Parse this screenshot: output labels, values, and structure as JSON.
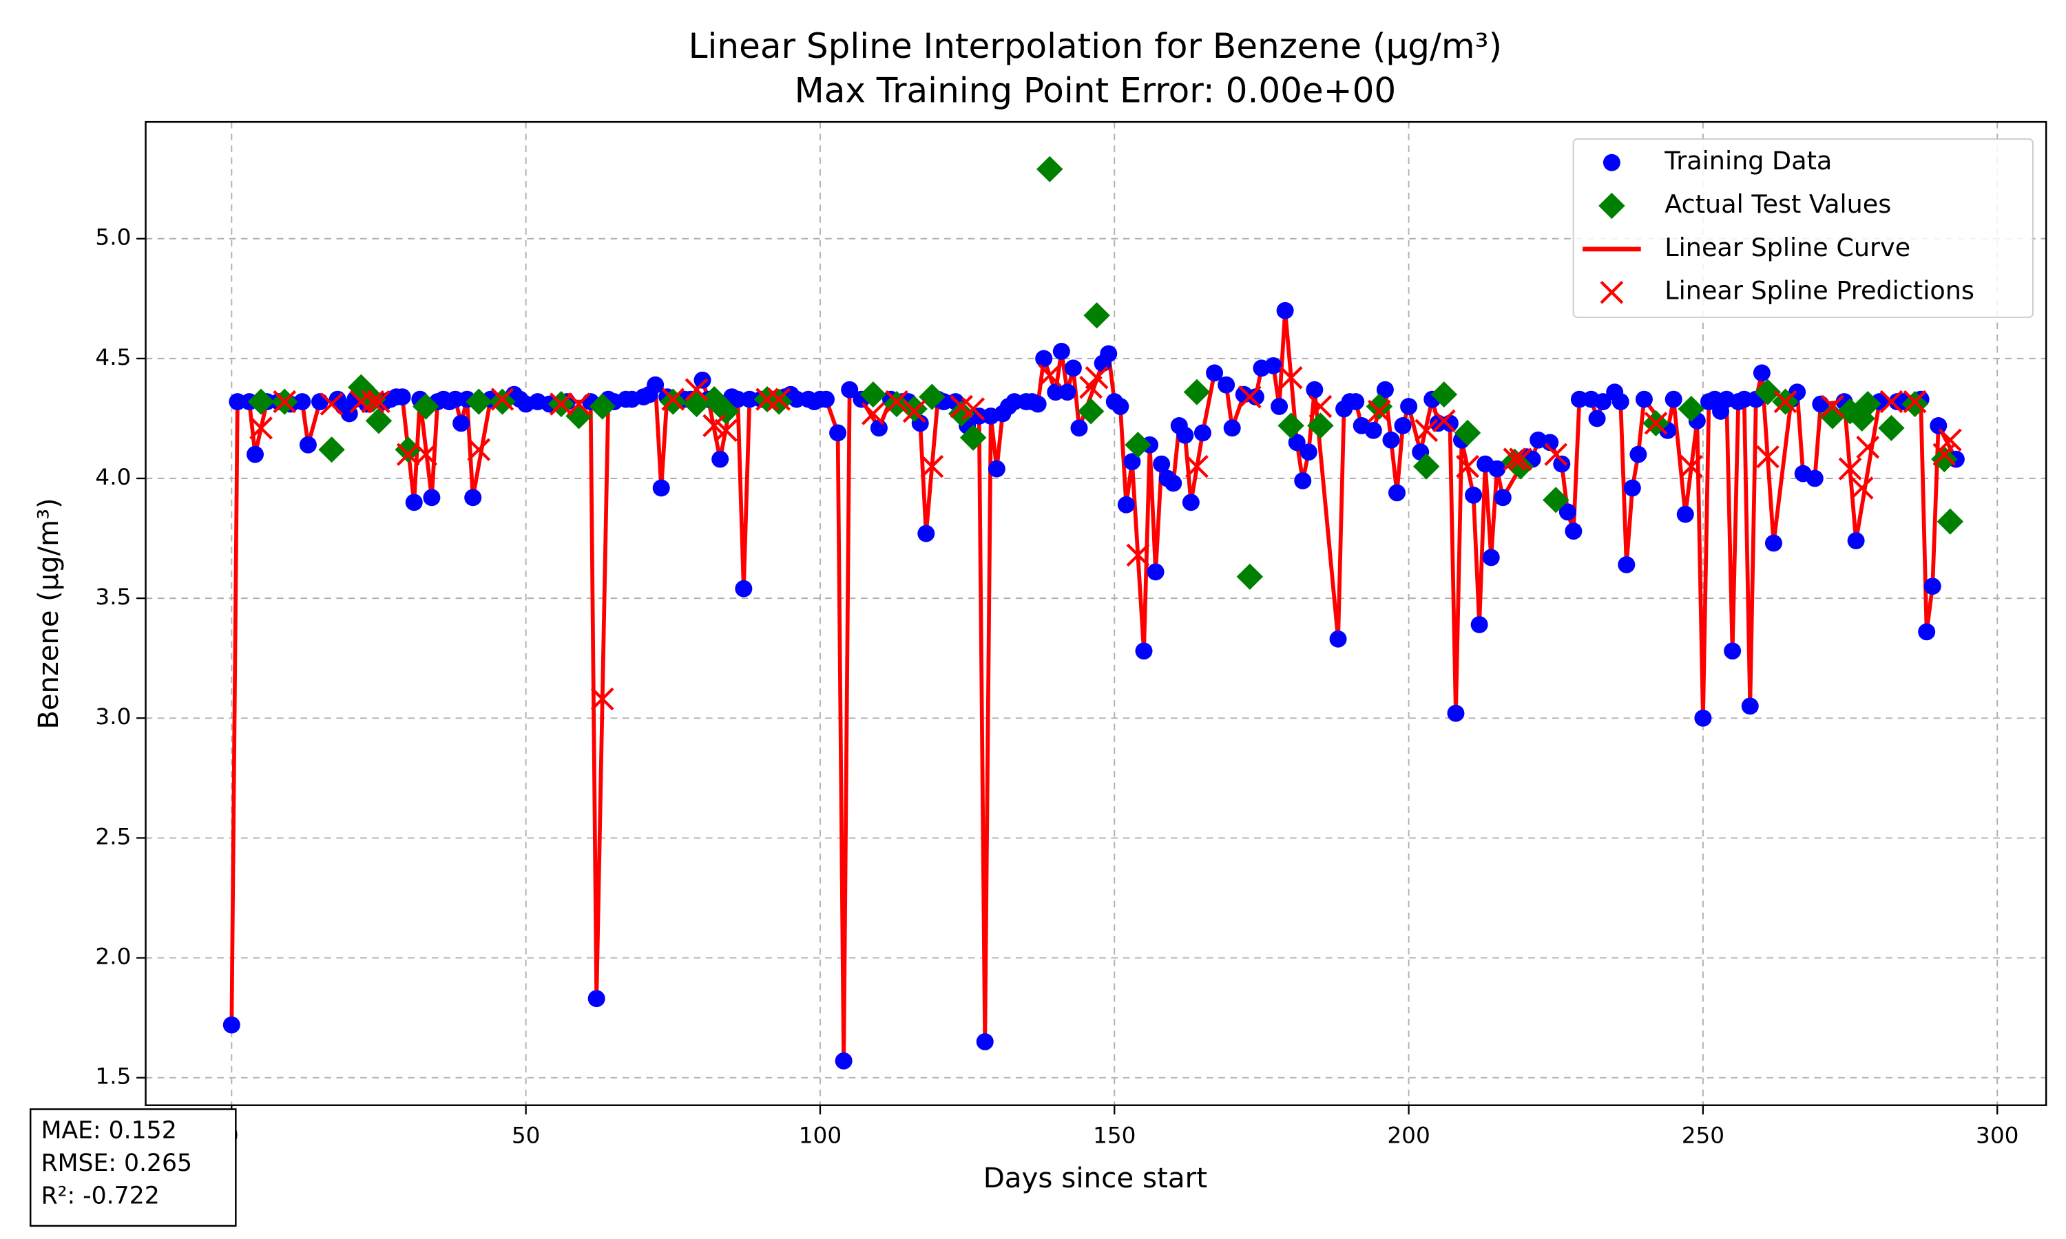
{
  "chart_data": {
    "type": "scatter",
    "title": "Linear Spline Interpolation for Benzene (µg/m³)",
    "subtitle": "Max Training Point Error: 0.00e+00",
    "x_label": "Days since start",
    "y_label": "Benzene (µg/m³)",
    "xlim": [
      -14.6,
      308.3
    ],
    "ylim": [
      1.385,
      5.487
    ],
    "xticks": [
      0,
      50,
      100,
      150,
      200,
      250,
      300
    ],
    "yticks": [
      1.5,
      {
        "value": 2,
        "label": "2.0"
      },
      2.5,
      {
        "value": 3,
        "label": "3.0"
      },
      3.5,
      {
        "value": 4,
        "label": "4.0"
      },
      4.5,
      {
        "value": 5,
        "label": "5.0"
      }
    ],
    "grid": true,
    "legend": "upper right",
    "series": [
      {
        "name": "Linear Spline Curve",
        "marker": "-",
        "color": "#ff0000",
        "x": [
          0,
          1,
          3,
          4,
          6,
          8,
          10,
          12,
          13,
          15,
          18,
          19,
          20,
          21,
          23,
          26,
          27,
          28,
          29,
          31,
          32,
          34,
          35,
          36,
          37,
          38,
          39,
          40,
          41,
          44,
          48,
          49,
          50,
          52,
          54,
          57,
          61,
          62,
          64,
          65,
          67,
          68,
          70,
          71,
          72,
          73,
          74,
          77,
          78,
          80,
          81,
          83,
          85,
          86,
          87,
          88,
          90,
          92,
          94,
          95,
          96,
          98,
          99,
          100,
          101,
          103,
          104,
          105,
          107,
          110,
          112,
          114,
          115,
          117,
          118,
          120,
          121,
          123,
          125,
          127,
          128,
          129,
          130,
          131,
          132,
          133,
          135,
          136,
          137,
          138,
          140,
          141,
          142,
          143,
          144,
          148,
          149,
          150,
          151,
          152,
          153,
          155,
          156,
          157,
          158,
          159,
          160,
          161,
          162,
          163,
          165,
          167,
          169,
          170,
          172,
          174,
          175,
          177,
          178,
          179,
          181,
          182,
          183,
          184,
          188,
          189,
          190,
          191,
          192,
          194,
          196,
          197,
          198,
          199,
          200,
          202,
          204,
          205,
          207,
          208,
          209,
          211,
          212,
          213,
          214,
          215,
          216,
          220,
          221,
          222,
          224,
          226,
          227,
          228,
          229,
          231,
          232,
          233,
          235,
          236,
          237,
          238,
          239,
          240,
          244,
          245,
          247,
          249,
          250,
          251,
          252,
          253,
          254,
          255,
          256,
          257,
          258,
          259,
          260,
          262,
          265,
          266,
          267,
          269,
          270,
          274,
          276,
          280,
          283,
          284,
          287,
          288,
          289,
          290,
          293
        ],
        "values": [
          1.72,
          4.32,
          4.32,
          4.1,
          4.32,
          4.32,
          4.31,
          4.32,
          4.14,
          4.32,
          4.33,
          4.3,
          4.27,
          4.33,
          4.31,
          4.32,
          4.33,
          4.34,
          4.34,
          3.9,
          4.33,
          3.92,
          4.32,
          4.33,
          4.32,
          4.33,
          4.23,
          4.33,
          3.92,
          4.33,
          4.35,
          4.33,
          4.31,
          4.32,
          4.31,
          4.32,
          4.32,
          1.83,
          4.33,
          4.32,
          4.33,
          4.33,
          4.34,
          4.35,
          4.39,
          3.96,
          4.34,
          4.33,
          4.33,
          4.41,
          4.33,
          4.08,
          4.34,
          4.33,
          3.54,
          4.33,
          4.33,
          4.33,
          4.34,
          4.35,
          4.33,
          4.33,
          4.32,
          4.33,
          4.33,
          4.19,
          1.57,
          4.37,
          4.33,
          4.21,
          4.33,
          4.32,
          4.32,
          4.23,
          3.77,
          4.33,
          4.32,
          4.32,
          4.22,
          4.26,
          1.65,
          4.26,
          4.04,
          4.27,
          4.3,
          4.32,
          4.32,
          4.32,
          4.31,
          4.5,
          4.36,
          4.53,
          4.36,
          4.46,
          4.21,
          4.48,
          4.52,
          4.32,
          4.3,
          3.89,
          4.07,
          3.28,
          4.14,
          3.61,
          4.06,
          4.0,
          3.98,
          4.22,
          4.18,
          3.9,
          4.19,
          4.44,
          4.39,
          4.21,
          4.35,
          4.34,
          4.46,
          4.47,
          4.3,
          4.7,
          4.15,
          3.99,
          4.11,
          4.37,
          3.33,
          4.29,
          4.32,
          4.32,
          4.22,
          4.2,
          4.37,
          4.16,
          3.94,
          4.22,
          4.3,
          4.11,
          4.33,
          4.23,
          4.23,
          3.02,
          4.16,
          3.93,
          3.39,
          4.06,
          3.67,
          4.04,
          3.92,
          4.09,
          4.08,
          4.16,
          4.15,
          4.06,
          3.86,
          3.78,
          4.33,
          4.33,
          4.25,
          4.32,
          4.36,
          4.32,
          3.64,
          3.96,
          4.1,
          4.33,
          4.2,
          4.33,
          3.85,
          4.24,
          3.0,
          4.32,
          4.33,
          4.28,
          4.33,
          3.28,
          4.32,
          4.33,
          3.05,
          4.33,
          4.44,
          3.73,
          4.33,
          4.36,
          4.02,
          4.0,
          4.31,
          4.32,
          3.74,
          4.32,
          4.32,
          4.32,
          4.33,
          3.36,
          3.55,
          4.22,
          4.08
        ]
      },
      {
        "name": "Training Data",
        "marker": "o",
        "color": "#0000ff",
        "x": [
          0,
          1,
          3,
          4,
          6,
          8,
          10,
          12,
          13,
          15,
          18,
          19,
          20,
          21,
          23,
          26,
          27,
          28,
          29,
          31,
          32,
          34,
          35,
          36,
          37,
          38,
          39,
          40,
          41,
          44,
          48,
          49,
          50,
          52,
          54,
          57,
          61,
          62,
          64,
          65,
          67,
          68,
          70,
          71,
          72,
          73,
          74,
          77,
          78,
          80,
          81,
          83,
          85,
          86,
          87,
          88,
          90,
          92,
          94,
          95,
          96,
          98,
          99,
          100,
          101,
          103,
          104,
          105,
          107,
          110,
          112,
          114,
          115,
          117,
          118,
          120,
          121,
          123,
          125,
          127,
          128,
          129,
          130,
          131,
          132,
          133,
          135,
          136,
          137,
          138,
          140,
          141,
          142,
          143,
          144,
          148,
          149,
          150,
          151,
          152,
          153,
          155,
          156,
          157,
          158,
          159,
          160,
          161,
          162,
          163,
          165,
          167,
          169,
          170,
          172,
          174,
          175,
          177,
          178,
          179,
          181,
          182,
          183,
          184,
          188,
          189,
          190,
          191,
          192,
          194,
          196,
          197,
          198,
          199,
          200,
          202,
          204,
          205,
          207,
          208,
          209,
          211,
          212,
          213,
          214,
          215,
          216,
          220,
          221,
          222,
          224,
          226,
          227,
          228,
          229,
          231,
          232,
          233,
          235,
          236,
          237,
          238,
          239,
          240,
          244,
          245,
          247,
          249,
          250,
          251,
          252,
          253,
          254,
          255,
          256,
          257,
          258,
          259,
          260,
          262,
          265,
          266,
          267,
          269,
          270,
          274,
          276,
          280,
          283,
          284,
          287,
          288,
          289,
          290,
          293
        ],
        "values": [
          1.72,
          4.32,
          4.32,
          4.1,
          4.32,
          4.32,
          4.31,
          4.32,
          4.14,
          4.32,
          4.33,
          4.3,
          4.27,
          4.33,
          4.31,
          4.32,
          4.33,
          4.34,
          4.34,
          3.9,
          4.33,
          3.92,
          4.32,
          4.33,
          4.32,
          4.33,
          4.23,
          4.33,
          3.92,
          4.33,
          4.35,
          4.33,
          4.31,
          4.32,
          4.31,
          4.32,
          4.32,
          1.83,
          4.33,
          4.32,
          4.33,
          4.33,
          4.34,
          4.35,
          4.39,
          3.96,
          4.34,
          4.33,
          4.33,
          4.41,
          4.33,
          4.08,
          4.34,
          4.33,
          3.54,
          4.33,
          4.33,
          4.33,
          4.34,
          4.35,
          4.33,
          4.33,
          4.32,
          4.33,
          4.33,
          4.19,
          1.57,
          4.37,
          4.33,
          4.21,
          4.33,
          4.32,
          4.32,
          4.23,
          3.77,
          4.33,
          4.32,
          4.32,
          4.22,
          4.26,
          1.65,
          4.26,
          4.04,
          4.27,
          4.3,
          4.32,
          4.32,
          4.32,
          4.31,
          4.5,
          4.36,
          4.53,
          4.36,
          4.46,
          4.21,
          4.48,
          4.52,
          4.32,
          4.3,
          3.89,
          4.07,
          3.28,
          4.14,
          3.61,
          4.06,
          4.0,
          3.98,
          4.22,
          4.18,
          3.9,
          4.19,
          4.44,
          4.39,
          4.21,
          4.35,
          4.34,
          4.46,
          4.47,
          4.3,
          4.7,
          4.15,
          3.99,
          4.11,
          4.37,
          3.33,
          4.29,
          4.32,
          4.32,
          4.22,
          4.2,
          4.37,
          4.16,
          3.94,
          4.22,
          4.3,
          4.11,
          4.33,
          4.23,
          4.23,
          3.02,
          4.16,
          3.93,
          3.39,
          4.06,
          3.67,
          4.04,
          3.92,
          4.09,
          4.08,
          4.16,
          4.15,
          4.06,
          3.86,
          3.78,
          4.33,
          4.33,
          4.25,
          4.32,
          4.36,
          4.32,
          3.64,
          3.96,
          4.1,
          4.33,
          4.2,
          4.33,
          3.85,
          4.24,
          3.0,
          4.32,
          4.33,
          4.28,
          4.33,
          3.28,
          4.32,
          4.33,
          3.05,
          4.33,
          4.44,
          3.73,
          4.33,
          4.36,
          4.02,
          4.0,
          4.31,
          4.32,
          3.74,
          4.32,
          4.32,
          4.32,
          4.33,
          3.36,
          3.55,
          4.22,
          4.08
        ]
      },
      {
        "name": "Actual Test Values",
        "marker": "D",
        "color": "#008000",
        "x": [
          5,
          9,
          17,
          22,
          24,
          25,
          30,
          33,
          42,
          46,
          56,
          59,
          63,
          75,
          79,
          82,
          84,
          91,
          93,
          109,
          113,
          116,
          119,
          124,
          126,
          139,
          146,
          147,
          154,
          164,
          173,
          180,
          185,
          195,
          203,
          206,
          210,
          218,
          219,
          225,
          242,
          248,
          261,
          264,
          272,
          275,
          277,
          278,
          282,
          286,
          291,
          292
        ],
        "values": [
          4.32,
          4.32,
          4.12,
          4.38,
          4.33,
          4.24,
          4.12,
          4.3,
          4.32,
          4.32,
          4.31,
          4.26,
          4.3,
          4.32,
          4.31,
          4.33,
          4.28,
          4.33,
          4.32,
          4.35,
          4.31,
          4.29,
          4.34,
          4.27,
          4.17,
          5.29,
          4.28,
          4.68,
          4.14,
          4.36,
          3.59,
          4.22,
          4.22,
          4.3,
          4.05,
          4.35,
          4.19,
          4.07,
          4.05,
          3.91,
          4.23,
          4.29,
          4.36,
          4.32,
          4.26,
          4.28,
          4.25,
          4.31,
          4.21,
          4.31,
          4.08,
          3.82
        ]
      },
      {
        "name": "Linear Spline Predictions",
        "marker": "x",
        "color": "#ff0000",
        "x": [
          5,
          9,
          17,
          22,
          24,
          25,
          30,
          33,
          42,
          46,
          56,
          59,
          63,
          75,
          79,
          82,
          84,
          91,
          93,
          109,
          113,
          116,
          119,
          124,
          126,
          139,
          146,
          147,
          154,
          164,
          173,
          180,
          185,
          195,
          203,
          206,
          210,
          218,
          219,
          225,
          242,
          248,
          261,
          264,
          272,
          275,
          277,
          278,
          282,
          286,
          291,
          292
        ],
        "values": [
          4.21,
          4.32,
          4.31,
          4.32,
          4.32,
          4.32,
          4.1,
          4.1,
          4.12,
          4.33,
          4.31,
          4.31,
          3.08,
          4.33,
          4.37,
          4.22,
          4.2,
          4.33,
          4.33,
          4.27,
          4.32,
          4.28,
          4.05,
          4.3,
          4.29,
          4.43,
          4.38,
          4.42,
          3.68,
          4.05,
          4.34,
          4.42,
          4.3,
          4.28,
          4.2,
          4.24,
          4.05,
          4.08,
          4.08,
          4.1,
          4.23,
          4.05,
          4.09,
          4.32,
          4.3,
          4.04,
          3.96,
          4.13,
          4.32,
          4.32,
          4.1,
          4.16
        ]
      }
    ],
    "annotation": [
      "MAE: 0.152",
      "RMSE: 0.265",
      "R²: -0.722"
    ]
  }
}
